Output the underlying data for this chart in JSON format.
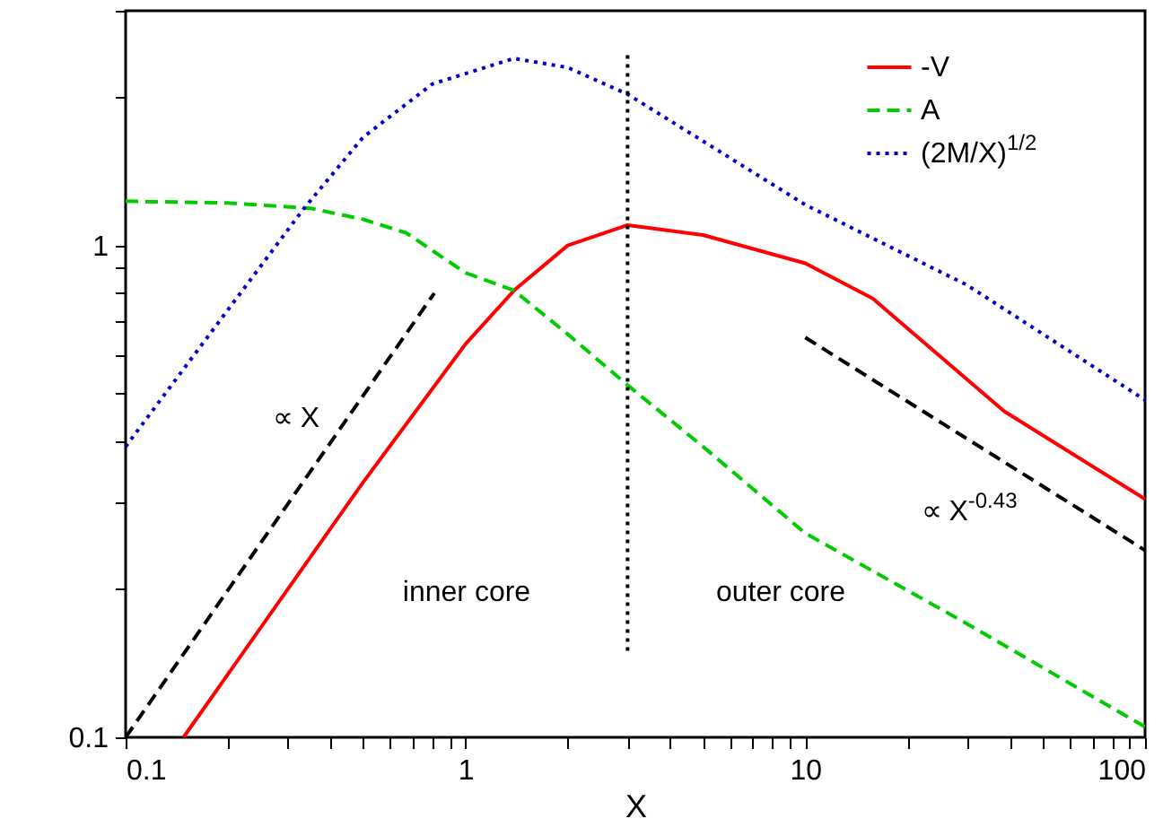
{
  "chart_data": {
    "type": "line",
    "xlabel": "X",
    "log": "xy",
    "legend": "top right",
    "grid": false,
    "xlim": [
      0.1,
      100
    ],
    "ylim": [
      0.1,
      3
    ],
    "xticks": [
      0.1,
      {
        "value": 0.2,
        "label": null
      },
      {
        "value": 0.3,
        "label": null
      },
      {
        "value": 0.4,
        "label": null
      },
      {
        "value": 0.5,
        "label": null
      },
      {
        "value": 0.6,
        "label": null
      },
      {
        "value": 0.7,
        "label": null
      },
      {
        "value": 0.8,
        "label": null
      },
      {
        "value": 0.9,
        "label": null
      },
      1,
      {
        "value": 2,
        "label": null
      },
      {
        "value": 3,
        "label": null
      },
      {
        "value": 4,
        "label": null
      },
      {
        "value": 5,
        "label": null
      },
      {
        "value": 6,
        "label": null
      },
      {
        "value": 7,
        "label": null
      },
      {
        "value": 8,
        "label": null
      },
      {
        "value": 9,
        "label": null
      },
      10,
      {
        "value": 20,
        "label": null
      },
      {
        "value": 30,
        "label": null
      },
      {
        "value": 40,
        "label": null
      },
      {
        "value": 50,
        "label": null
      },
      {
        "value": 60,
        "label": null
      },
      {
        "value": 70,
        "label": null
      },
      {
        "value": 80,
        "label": null
      },
      {
        "value": 90,
        "label": null
      },
      100
    ],
    "yticks": [
      0.1,
      {
        "value": 0.2,
        "label": null
      },
      {
        "value": 0.3,
        "label": null
      },
      {
        "value": 0.4,
        "label": null
      },
      {
        "value": 0.5,
        "label": null
      },
      {
        "value": 0.6,
        "label": null
      },
      {
        "value": 0.7,
        "label": null
      },
      {
        "value": 0.8,
        "label": null
      },
      {
        "value": 0.9,
        "label": null
      },
      1,
      {
        "value": 2,
        "label": null
      },
      {
        "value": 3,
        "label": null
      }
    ],
    "series": [
      {
        "name": "-V",
        "color": "#ff0000",
        "line_style": "solid",
        "x": [
          0.148,
          0.3,
          0.5,
          1,
          1.39,
          2,
          3,
          5,
          10,
          15.8,
          38.5,
          100
        ],
        "values": [
          0.1,
          0.2,
          0.33,
          0.63,
          0.81,
          1.0,
          1.1,
          1.05,
          0.92,
          0.78,
          0.46,
          0.305
        ]
      },
      {
        "name": "A",
        "color": "#00cc00",
        "line_style": "dashed",
        "x": [
          0.1,
          0.2,
          0.35,
          0.5,
          0.67,
          1,
          1.39,
          2,
          3,
          5,
          10,
          30,
          100
        ],
        "values": [
          1.23,
          1.22,
          1.19,
          1.13,
          1.06,
          0.88,
          0.81,
          0.66,
          0.52,
          0.39,
          0.26,
          0.17,
          0.105
        ]
      },
      {
        "name": "(2M/X)$^{1/2}$",
        "color": "#0000cc",
        "line_style": "dotted",
        "x": [
          0.1,
          0.2,
          0.335,
          0.5,
          0.8,
          1.39,
          2,
          3,
          10,
          30,
          100
        ],
        "values": [
          0.39,
          0.74,
          1.19,
          1.66,
          2.13,
          2.4,
          2.3,
          2.03,
          1.21,
          0.83,
          0.485
        ]
      },
      {
        "color": "#000000",
        "line_style": "dashed",
        "x": [
          0.1,
          0.81
        ],
        "values": [
          0.1,
          0.8
        ]
      },
      {
        "color": "#000000",
        "line_style": "dashed",
        "x": [
          10,
          100
        ],
        "values": [
          0.65,
          0.24
        ]
      },
      {
        "color": "#000000",
        "line_style": "dotted",
        "x": [
          3,
          3,
          3
        ],
        "values": [
          0.15,
          1,
          2.5
        ]
      }
    ],
    "annotations": [
      "∝ X",
      "∝ X$^{-0.43}$",
      "inner core",
      "outer core"
    ]
  }
}
